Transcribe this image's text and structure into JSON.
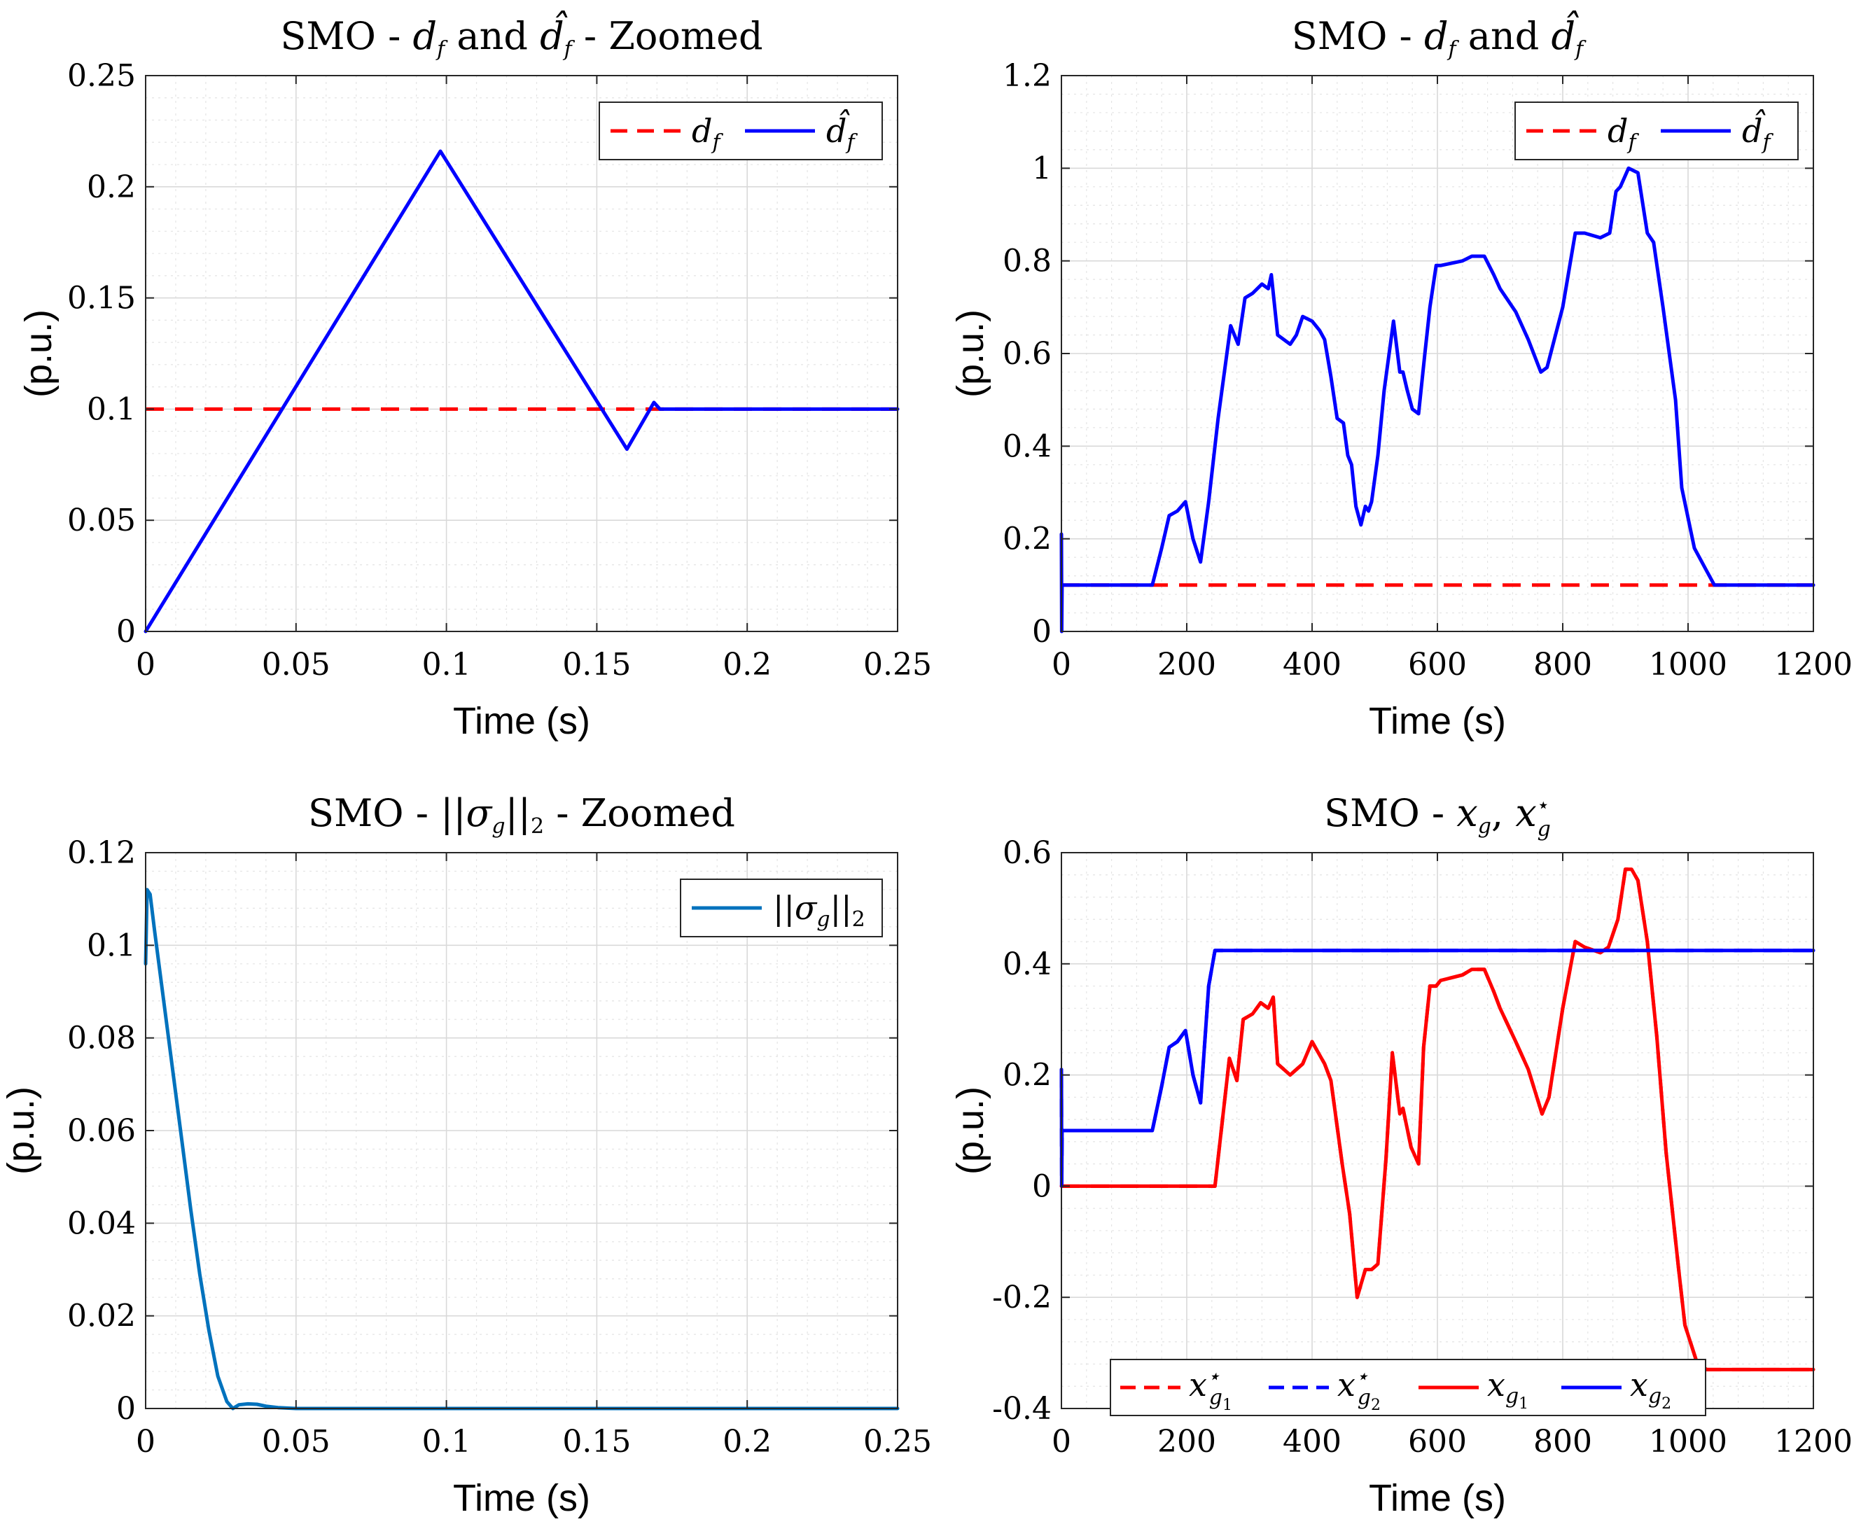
{
  "figure": {
    "description_free": true
  },
  "chart_data": [
    {
      "id": "p1",
      "type": "line",
      "title": "SMO - d_f and d̂_f - Zoomed",
      "title_parts": {
        "pre": "SMO - ",
        "a": "d",
        "a_sub": "f",
        "mid": " and ",
        "b": "d̂",
        "b_sub": "f",
        "post": " - Zoomed"
      },
      "xlabel": "Time (s)",
      "ylabel": "(p.u.)",
      "xlim": [
        0,
        0.25
      ],
      "ylim": [
        0,
        0.25
      ],
      "xticks": [
        0,
        0.05,
        0.1,
        0.15,
        0.2,
        0.25
      ],
      "xtick_labels": [
        "0",
        "0.05",
        "0.1",
        "0.15",
        "0.2",
        "0.25"
      ],
      "yticks": [
        0,
        0.05,
        0.1,
        0.15,
        0.2,
        0.25
      ],
      "ytick_labels": [
        "0",
        "0.05",
        "0.1",
        "0.15",
        "0.2",
        "0.25"
      ],
      "grid": true,
      "legend_position": "top-right",
      "series": [
        {
          "name": "d_f",
          "label": "d",
          "label_sub": "f",
          "color": "#ff0000",
          "dash": true,
          "x": [
            0,
            0.25
          ],
          "y": [
            0.1,
            0.1
          ]
        },
        {
          "name": "d̂_f",
          "label": "d̂",
          "label_sub": "f",
          "color": "#0000ff",
          "dash": false,
          "x": [
            0,
            0.098,
            0.16,
            0.169,
            0.171,
            0.25
          ],
          "y": [
            0,
            0.216,
            0.082,
            0.103,
            0.1,
            0.1
          ]
        }
      ]
    },
    {
      "id": "p2",
      "type": "line",
      "title": "SMO - d_f and d̂_f",
      "title_parts": {
        "pre": "SMO - ",
        "a": "d",
        "a_sub": "f",
        "mid": " and ",
        "b": "d̂",
        "b_sub": "f",
        "post": ""
      },
      "xlabel": "Time (s)",
      "ylabel": "(p.u.)",
      "xlim": [
        0,
        1200
      ],
      "ylim": [
        0,
        1.2
      ],
      "xticks": [
        0,
        200,
        400,
        600,
        800,
        1000,
        1200
      ],
      "xtick_labels": [
        "0",
        "200",
        "400",
        "600",
        "800",
        "1000",
        "1200"
      ],
      "yticks": [
        0,
        0.2,
        0.4,
        0.6,
        0.8,
        1,
        1.2
      ],
      "ytick_labels": [
        "0",
        "0.2",
        "0.4",
        "0.6",
        "0.8",
        "1",
        "1.2"
      ],
      "grid": true,
      "legend_position": "top-right",
      "series": [
        {
          "name": "d_f",
          "label": "d",
          "label_sub": "f",
          "color": "#ff0000",
          "dash": true,
          "x": [
            0,
            1200
          ],
          "y": [
            0.1,
            0.1
          ]
        },
        {
          "name": "d̂_f",
          "label": "d̂",
          "label_sub": "f",
          "color": "#0000ff",
          "dash": false,
          "x": [
            0,
            0.5,
            1,
            130,
            145,
            160,
            172,
            185,
            198,
            210,
            222,
            235,
            250,
            270,
            282,
            293,
            305,
            320,
            330,
            335,
            345,
            365,
            375,
            385,
            400,
            412,
            420,
            430,
            440,
            450,
            457,
            463,
            470,
            478,
            485,
            490,
            495,
            505,
            515,
            530,
            540,
            545,
            552,
            560,
            570,
            580,
            588,
            598,
            605,
            640,
            655,
            675,
            690,
            700,
            725,
            745,
            765,
            775,
            800,
            820,
            835,
            860,
            875,
            885,
            892,
            905,
            920,
            935,
            945,
            960,
            980,
            990,
            1010,
            1030,
            1042,
            1200
          ],
          "y": [
            0.21,
            0.0,
            0.1,
            0.1,
            0.1,
            0.18,
            0.25,
            0.26,
            0.28,
            0.2,
            0.15,
            0.28,
            0.46,
            0.66,
            0.62,
            0.72,
            0.73,
            0.75,
            0.74,
            0.77,
            0.64,
            0.62,
            0.64,
            0.68,
            0.67,
            0.65,
            0.63,
            0.55,
            0.46,
            0.45,
            0.38,
            0.36,
            0.27,
            0.23,
            0.27,
            0.26,
            0.28,
            0.38,
            0.52,
            0.67,
            0.56,
            0.56,
            0.52,
            0.48,
            0.47,
            0.6,
            0.7,
            0.79,
            0.79,
            0.8,
            0.81,
            0.81,
            0.77,
            0.74,
            0.69,
            0.63,
            0.56,
            0.57,
            0.7,
            0.86,
            0.86,
            0.85,
            0.86,
            0.95,
            0.96,
            1.0,
            0.99,
            0.86,
            0.84,
            0.7,
            0.5,
            0.31,
            0.18,
            0.13,
            0.1,
            0.1
          ]
        }
      ]
    },
    {
      "id": "p3",
      "type": "line",
      "title": "SMO - ||σ_g||_2 - Zoomed",
      "title_parts": {
        "pre": "SMO - ",
        "norm": "||σ",
        "norm_sub": "g",
        "norm_post": "||",
        "norm_sub2": "2",
        "post": " - Zoomed"
      },
      "xlabel": "Time (s)",
      "ylabel": "(p.u.)",
      "xlim": [
        0,
        0.25
      ],
      "ylim": [
        0,
        0.12
      ],
      "xticks": [
        0,
        0.05,
        0.1,
        0.15,
        0.2,
        0.25
      ],
      "xtick_labels": [
        "0",
        "0.05",
        "0.1",
        "0.15",
        "0.2",
        "0.25"
      ],
      "yticks": [
        0,
        0.02,
        0.04,
        0.06,
        0.08,
        0.1,
        0.12
      ],
      "ytick_labels": [
        "0",
        "0.02",
        "0.04",
        "0.06",
        "0.08",
        "0.1",
        "0.12"
      ],
      "grid": true,
      "legend_position": "top-right",
      "series": [
        {
          "name": "||σ_g||_2",
          "label": "||σ",
          "label_sub": "g",
          "label_post": "||",
          "label_sub2": "2",
          "color": "#0072bd",
          "dash": false,
          "x": [
            0,
            0.0005,
            0.0015,
            0.003,
            0.006,
            0.009,
            0.012,
            0.015,
            0.018,
            0.021,
            0.024,
            0.027,
            0.029,
            0.031,
            0.034,
            0.037,
            0.04,
            0.044,
            0.05,
            0.1,
            0.25
          ],
          "y": [
            0.096,
            0.112,
            0.111,
            0.103,
            0.088,
            0.073,
            0.058,
            0.043,
            0.029,
            0.017,
            0.007,
            0.0015,
            0.0,
            0.0008,
            0.001,
            0.0009,
            0.0005,
            0.0002,
            0.0,
            0.0,
            0.0
          ]
        }
      ]
    },
    {
      "id": "p4",
      "type": "line",
      "title": "SMO - x_g, x*_g",
      "title_parts": {
        "pre": "SMO - ",
        "a": "x",
        "a_sub": "g",
        "mid": ",  ",
        "b": "x",
        "b_sup": "⋆",
        "b_sub": "g"
      },
      "xlabel": "Time (s)",
      "ylabel": "(p.u.)",
      "xlim": [
        0,
        1200
      ],
      "ylim": [
        -0.4,
        0.6
      ],
      "xticks": [
        0,
        200,
        400,
        600,
        800,
        1000,
        1200
      ],
      "xtick_labels": [
        "0",
        "200",
        "400",
        "600",
        "800",
        "1000",
        "1200"
      ],
      "yticks": [
        -0.4,
        -0.2,
        0,
        0.2,
        0.4,
        0.6
      ],
      "ytick_labels": [
        "-0.4",
        "-0.2",
        "0",
        "0.2",
        "0.4",
        "0.6"
      ],
      "grid": true,
      "legend_position": "bottom",
      "series": [
        {
          "name": "x*_g1",
          "label": "x",
          "label_sup": "⋆",
          "label_sub": "g",
          "label_subsub": "1",
          "color": "#ff0000",
          "dash": true,
          "x": [
            0,
            245,
            248,
            268,
            280,
            290,
            305,
            318,
            330,
            338,
            345,
            365,
            385,
            400,
            420,
            430,
            448,
            460,
            472,
            485,
            495,
            505,
            518,
            528,
            540,
            545,
            558,
            570,
            578,
            588,
            598,
            605,
            640,
            655,
            675,
            690,
            700,
            725,
            745,
            767,
            778,
            800,
            820,
            835,
            860,
            873,
            888,
            900,
            910,
            920,
            935,
            950,
            965,
            985,
            995,
            1015,
            1030,
            1040,
            1200
          ],
          "y": [
            0,
            0,
            0.03,
            0.23,
            0.19,
            0.3,
            0.31,
            0.33,
            0.32,
            0.34,
            0.22,
            0.2,
            0.22,
            0.26,
            0.22,
            0.19,
            0.04,
            -0.05,
            -0.2,
            -0.15,
            -0.15,
            -0.14,
            0.05,
            0.24,
            0.13,
            0.14,
            0.07,
            0.04,
            0.25,
            0.36,
            0.36,
            0.37,
            0.38,
            0.39,
            0.39,
            0.35,
            0.32,
            0.26,
            0.21,
            0.13,
            0.16,
            0.32,
            0.44,
            0.43,
            0.42,
            0.43,
            0.48,
            0.57,
            0.57,
            0.55,
            0.44,
            0.27,
            0.06,
            -0.15,
            -0.25,
            -0.32,
            -0.33,
            -0.33,
            -0.33
          ]
        },
        {
          "name": "x*_g2",
          "label": "x",
          "label_sup": "⋆",
          "label_sub": "g",
          "label_subsub": "2",
          "color": "#0000ff",
          "dash": true,
          "x": [
            0,
            0.5,
            1,
            130,
            145,
            160,
            172,
            185,
            198,
            210,
            222,
            235,
            245,
            1200
          ],
          "y": [
            0.21,
            0.0,
            0.1,
            0.1,
            0.1,
            0.18,
            0.25,
            0.26,
            0.28,
            0.2,
            0.15,
            0.36,
            0.424,
            0.424
          ]
        },
        {
          "name": "x_g1",
          "label": "x",
          "label_sub": "g",
          "label_subsub": "1",
          "color": "#ff0000",
          "dash": false,
          "x": [
            0,
            245,
            248,
            268,
            280,
            290,
            305,
            318,
            330,
            338,
            345,
            365,
            385,
            400,
            420,
            430,
            448,
            460,
            472,
            485,
            495,
            505,
            518,
            528,
            540,
            545,
            558,
            570,
            578,
            588,
            598,
            605,
            640,
            655,
            675,
            690,
            700,
            725,
            745,
            767,
            778,
            800,
            820,
            835,
            860,
            873,
            888,
            900,
            910,
            920,
            935,
            950,
            965,
            985,
            995,
            1015,
            1030,
            1040,
            1200
          ],
          "y": [
            0,
            0,
            0.03,
            0.23,
            0.19,
            0.3,
            0.31,
            0.33,
            0.32,
            0.34,
            0.22,
            0.2,
            0.22,
            0.26,
            0.22,
            0.19,
            0.04,
            -0.05,
            -0.2,
            -0.15,
            -0.15,
            -0.14,
            0.05,
            0.24,
            0.13,
            0.14,
            0.07,
            0.04,
            0.25,
            0.36,
            0.36,
            0.37,
            0.38,
            0.39,
            0.39,
            0.35,
            0.32,
            0.26,
            0.21,
            0.13,
            0.16,
            0.32,
            0.44,
            0.43,
            0.42,
            0.43,
            0.48,
            0.57,
            0.57,
            0.55,
            0.44,
            0.27,
            0.06,
            -0.15,
            -0.25,
            -0.32,
            -0.33,
            -0.33,
            -0.33
          ]
        },
        {
          "name": "x_g2",
          "label": "x",
          "label_sub": "g",
          "label_subsub": "2",
          "color": "#0000ff",
          "dash": false,
          "x": [
            0,
            0.5,
            1,
            130,
            145,
            160,
            172,
            185,
            198,
            210,
            222,
            235,
            245,
            1200
          ],
          "y": [
            0.21,
            0.0,
            0.1,
            0.1,
            0.1,
            0.18,
            0.25,
            0.26,
            0.28,
            0.2,
            0.15,
            0.36,
            0.424,
            0.424
          ]
        }
      ]
    }
  ]
}
